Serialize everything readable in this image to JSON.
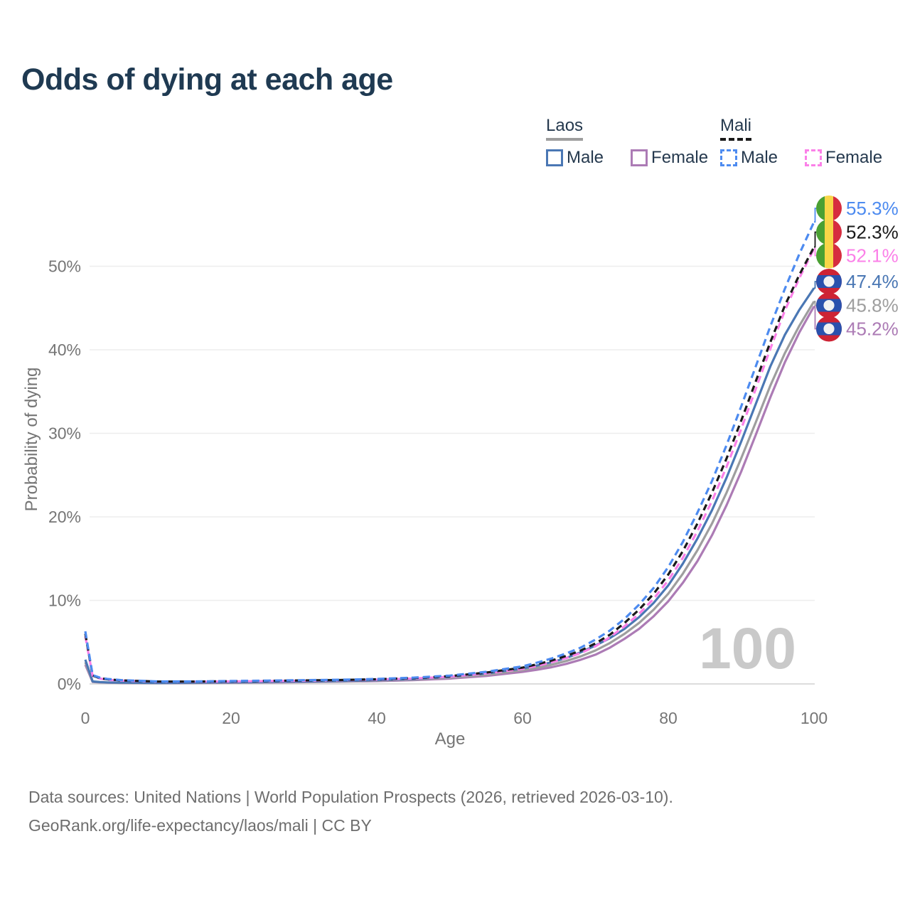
{
  "title": "Odds of dying at each age",
  "watermark_age": "100",
  "legend": {
    "groups": [
      {
        "label": "Laos",
        "line_style": "solid",
        "underline_color": "#9e9e9e",
        "items": [
          {
            "label": "Male",
            "color": "#4a77b4"
          },
          {
            "label": "Female",
            "color": "#ac7bb5"
          }
        ]
      },
      {
        "label": "Mali",
        "line_style": "dashed",
        "underline_color": "#1a1a1a",
        "items": [
          {
            "label": "Male",
            "color": "#4d8bf0"
          },
          {
            "label": "Female",
            "color": "#fb80e8"
          }
        ]
      }
    ]
  },
  "axes": {
    "x": {
      "label": "Age",
      "range": [
        0,
        100
      ],
      "ticks": [
        0,
        20,
        40,
        60,
        80,
        100
      ]
    },
    "y": {
      "label": "Probability of dying",
      "range": [
        0,
        57
      ],
      "ticks": [
        {
          "value": 0,
          "label": "0%"
        },
        {
          "value": 10,
          "label": "10%"
        },
        {
          "value": 20,
          "label": "20%"
        },
        {
          "value": 30,
          "label": "30%"
        },
        {
          "value": 40,
          "label": "40%"
        },
        {
          "value": 50,
          "label": "50%"
        }
      ]
    }
  },
  "colors": {
    "grid": "#ededed",
    "zero_line": "#dcdcdc",
    "tick_text": "#757575",
    "axis_label_text": "#757575",
    "title_text": "#1f3a52",
    "legend_text": "#25394e",
    "footer_text": "#6e6e6e",
    "watermark_text": "#c9c9c9",
    "flags": {
      "mali_green": "#4aa033",
      "mali_yellow": "#f8d648",
      "mali_red": "#d62d3f",
      "laos_red": "#ce2334",
      "laos_blue": "#2a51ad",
      "laos_white": "#f2f2f2"
    }
  },
  "chart_data": {
    "type": "line",
    "x_label": "Age",
    "y_label": "Probability of dying",
    "y_unit": "%",
    "grid": true,
    "legend_position": "top-right",
    "ages": [
      0,
      1,
      2,
      3,
      5,
      10,
      15,
      20,
      25,
      30,
      35,
      40,
      45,
      50,
      55,
      60,
      62,
      64,
      66,
      68,
      70,
      72,
      74,
      76,
      78,
      80,
      82,
      84,
      86,
      88,
      90,
      92,
      94,
      96,
      98,
      100
    ],
    "series": [
      {
        "id": "laos-female",
        "name": "Laos Female",
        "country": "Laos",
        "sex": "Female",
        "color": "#ac7bb5",
        "dasharray": null,
        "flag": "laos",
        "end_value": 45.2,
        "end_label": "45.2%",
        "label_color": "#ac7bb5",
        "values": [
          2.3,
          0.24,
          0.18,
          0.15,
          0.12,
          0.1,
          0.11,
          0.14,
          0.18,
          0.22,
          0.27,
          0.34,
          0.45,
          0.64,
          0.95,
          1.45,
          1.7,
          2.0,
          2.4,
          2.9,
          3.5,
          4.35,
          5.4,
          6.6,
          8.1,
          9.9,
          12.1,
          14.7,
          17.8,
          21.4,
          25.4,
          29.8,
          34.3,
          38.5,
          42.1,
          45.2
        ]
      },
      {
        "id": "laos-all",
        "name": "Laos (both sexes)",
        "country": "Laos",
        "sex": "All",
        "color": "#9e9e9e",
        "dasharray": null,
        "flag": "laos",
        "end_value": 45.8,
        "end_label": "45.8%",
        "label_color": "#9e9e9e",
        "values": [
          2.6,
          0.27,
          0.2,
          0.17,
          0.14,
          0.11,
          0.13,
          0.17,
          0.21,
          0.26,
          0.31,
          0.4,
          0.53,
          0.75,
          1.1,
          1.65,
          1.95,
          2.3,
          2.75,
          3.3,
          4.0,
          4.9,
          6.0,
          7.3,
          8.9,
          10.8,
          13.2,
          16.0,
          19.2,
          22.9,
          27.0,
          31.3,
          35.7,
          39.6,
          42.9,
          45.8
        ]
      },
      {
        "id": "laos-male",
        "name": "Laos Male",
        "country": "Laos",
        "sex": "Male",
        "color": "#4a77b4",
        "dasharray": null,
        "flag": "laos",
        "end_value": 47.4,
        "end_label": "47.4%",
        "label_color": "#4a77b4",
        "values": [
          2.9,
          0.3,
          0.22,
          0.18,
          0.15,
          0.12,
          0.15,
          0.2,
          0.25,
          0.3,
          0.36,
          0.45,
          0.6,
          0.85,
          1.25,
          1.85,
          2.2,
          2.6,
          3.1,
          3.8,
          4.6,
          5.5,
          6.6,
          8.0,
          9.7,
          11.8,
          14.4,
          17.4,
          20.8,
          24.7,
          29.0,
          33.5,
          38.0,
          41.8,
          44.8,
          47.4
        ]
      },
      {
        "id": "mali-female",
        "name": "Mali Female",
        "country": "Mali",
        "sex": "Female",
        "color": "#fb80e8",
        "dasharray": "10 6",
        "flag": "mali",
        "end_value": 52.1,
        "end_label": "52.1%",
        "label_color": "#fb80e8",
        "values": [
          5.7,
          0.95,
          0.65,
          0.5,
          0.4,
          0.26,
          0.26,
          0.3,
          0.34,
          0.38,
          0.43,
          0.52,
          0.65,
          0.86,
          1.25,
          1.8,
          2.15,
          2.6,
          3.1,
          3.7,
          4.5,
          5.6,
          6.9,
          8.4,
          10.2,
          12.4,
          15.1,
          18.3,
          21.9,
          26.0,
          30.5,
          35.3,
          40.1,
          44.7,
          48.6,
          52.1
        ]
      },
      {
        "id": "mali-all",
        "name": "Mali (both sexes)",
        "country": "Mali",
        "sex": "All",
        "color": "#1a1a1a",
        "dasharray": "9 6",
        "flag": "mali",
        "end_value": 52.3,
        "end_label": "52.3%",
        "label_color": "#1a1a1a",
        "values": [
          6.0,
          1.0,
          0.7,
          0.55,
          0.42,
          0.28,
          0.28,
          0.32,
          0.37,
          0.42,
          0.47,
          0.56,
          0.7,
          0.93,
          1.35,
          1.95,
          2.35,
          2.8,
          3.35,
          4.0,
          4.85,
          5.9,
          7.3,
          8.9,
          10.8,
          13.1,
          15.9,
          19.2,
          22.9,
          27.0,
          31.5,
          36.2,
          40.9,
          45.3,
          49.0,
          52.3
        ]
      },
      {
        "id": "mali-male",
        "name": "Mali Male",
        "country": "Mali",
        "sex": "Male",
        "color": "#4d8bf0",
        "dasharray": "10 6",
        "flag": "mali",
        "end_value": 55.3,
        "end_label": "55.3%",
        "label_color": "#4d8bf0",
        "values": [
          6.3,
          1.05,
          0.75,
          0.6,
          0.45,
          0.3,
          0.3,
          0.35,
          0.4,
          0.45,
          0.5,
          0.6,
          0.75,
          1.0,
          1.45,
          2.1,
          2.55,
          3.05,
          3.65,
          4.35,
          5.3,
          6.4,
          7.8,
          9.5,
          11.5,
          14.0,
          17.0,
          20.5,
          24.3,
          28.6,
          33.2,
          38.0,
          42.8,
          47.3,
          51.5,
          55.3
        ]
      }
    ]
  },
  "footer": {
    "line1": "Data sources: United Nations | World Population Prospects (2026, retrieved 2026-03-10).",
    "line2": "GeoRank.org/life-expectancy/laos/mali | CC BY"
  }
}
